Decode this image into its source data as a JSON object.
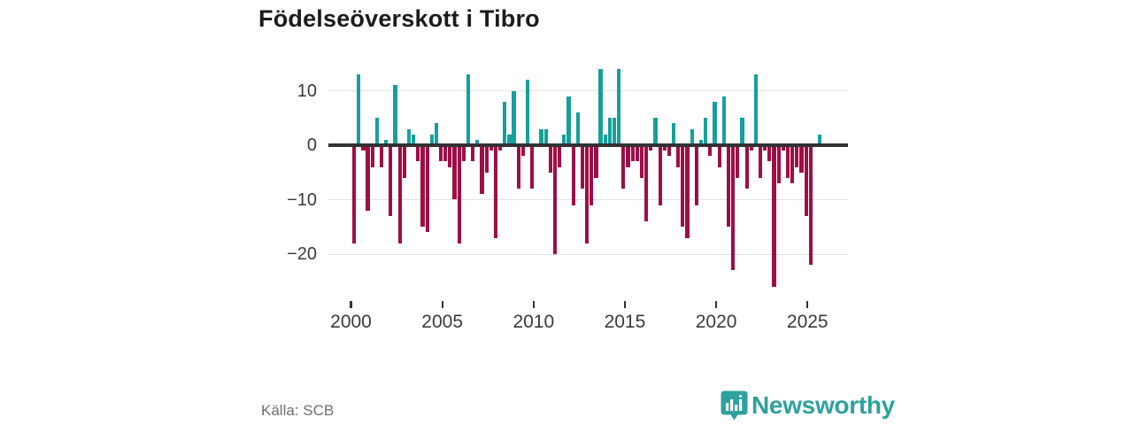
{
  "header": {
    "title": "Födelseöverskott i Tibro"
  },
  "footer": {
    "source": "Källa: SCB",
    "brand": "Newsworthy"
  },
  "colors": {
    "positive": "#16a09b",
    "negative": "#a00d46",
    "axis": "#323232",
    "grid": "#e3e3e3",
    "brand_teal": "#2ea19d",
    "text_dark": "#1c1c1c",
    "text_tick": "#3a3a3a",
    "text_source": "#707070"
  },
  "chart_data": {
    "type": "bar",
    "title": "Födelseöverskott i Tibro",
    "frequency": "quarterly",
    "x_ticks": [
      2000,
      2005,
      2010,
      2015,
      2020,
      2025
    ],
    "y_ticks": [
      10,
      0,
      -10,
      -20
    ],
    "y_tick_labels": [
      "10",
      "0",
      "−10",
      "−20"
    ],
    "ylim": [
      -27,
      15
    ],
    "grid": true,
    "legend": false,
    "quarters": [
      "2000Q1",
      "2000Q2",
      "2000Q3",
      "2000Q4",
      "2001Q1",
      "2001Q2",
      "2001Q3",
      "2001Q4",
      "2002Q1",
      "2002Q2",
      "2002Q3",
      "2002Q4",
      "2003Q1",
      "2003Q2",
      "2003Q3",
      "2003Q4",
      "2004Q1",
      "2004Q2",
      "2004Q3",
      "2004Q4",
      "2005Q1",
      "2005Q2",
      "2005Q3",
      "2005Q4",
      "2006Q1",
      "2006Q2",
      "2006Q3",
      "2006Q4",
      "2007Q1",
      "2007Q2",
      "2007Q3",
      "2007Q4",
      "2008Q1",
      "2008Q2",
      "2008Q3",
      "2008Q4",
      "2009Q1",
      "2009Q2",
      "2009Q3",
      "2009Q4",
      "2010Q1",
      "2010Q2",
      "2010Q3",
      "2010Q4",
      "2011Q1",
      "2011Q2",
      "2011Q3",
      "2011Q4",
      "2012Q1",
      "2012Q2",
      "2012Q3",
      "2012Q4",
      "2013Q1",
      "2013Q2",
      "2013Q3",
      "2013Q4",
      "2014Q1",
      "2014Q2",
      "2014Q3",
      "2014Q4",
      "2015Q1",
      "2015Q2",
      "2015Q3",
      "2015Q4",
      "2016Q1",
      "2016Q2",
      "2016Q3",
      "2016Q4",
      "2017Q1",
      "2017Q2",
      "2017Q3",
      "2017Q4",
      "2018Q1",
      "2018Q2",
      "2018Q3",
      "2018Q4",
      "2019Q1",
      "2019Q2",
      "2019Q3",
      "2019Q4",
      "2020Q1",
      "2020Q2",
      "2020Q3",
      "2020Q4",
      "2021Q1",
      "2021Q2",
      "2021Q3",
      "2021Q4",
      "2022Q1",
      "2022Q2",
      "2022Q3",
      "2022Q4",
      "2023Q1",
      "2023Q2",
      "2023Q3",
      "2023Q4",
      "2024Q1",
      "2024Q2",
      "2024Q3",
      "2024Q4",
      "2025Q1",
      "2025Q2",
      "2025Q3"
    ],
    "values": [
      -18,
      13,
      -1,
      -12,
      -4,
      5,
      -4,
      1,
      -13,
      11,
      -18,
      -6,
      3,
      2,
      -3,
      -15,
      -16,
      2,
      4,
      -3,
      -3,
      -4,
      -10,
      -18,
      -3,
      13,
      -3,
      1,
      -9,
      -5,
      -1,
      -17,
      -1,
      8,
      2,
      10,
      -8,
      -2,
      12,
      -8,
      0,
      3,
      3,
      -5,
      -20,
      -4,
      2,
      9,
      -11,
      6,
      -8,
      -18,
      -11,
      -6,
      14,
      2,
      5,
      5,
      14,
      -8,
      -4,
      -3,
      -3,
      -6,
      -14,
      -1,
      5,
      -11,
      -1,
      -2,
      4,
      -4,
      -15,
      -17,
      3,
      -11,
      1,
      5,
      -2,
      8,
      -4,
      9,
      -15,
      -23,
      -6,
      5,
      -8,
      -1,
      13,
      -6,
      -1,
      -3,
      -26,
      -7,
      -1,
      -6,
      -7,
      -4,
      -5,
      -13,
      -22,
      0,
      2
    ]
  }
}
